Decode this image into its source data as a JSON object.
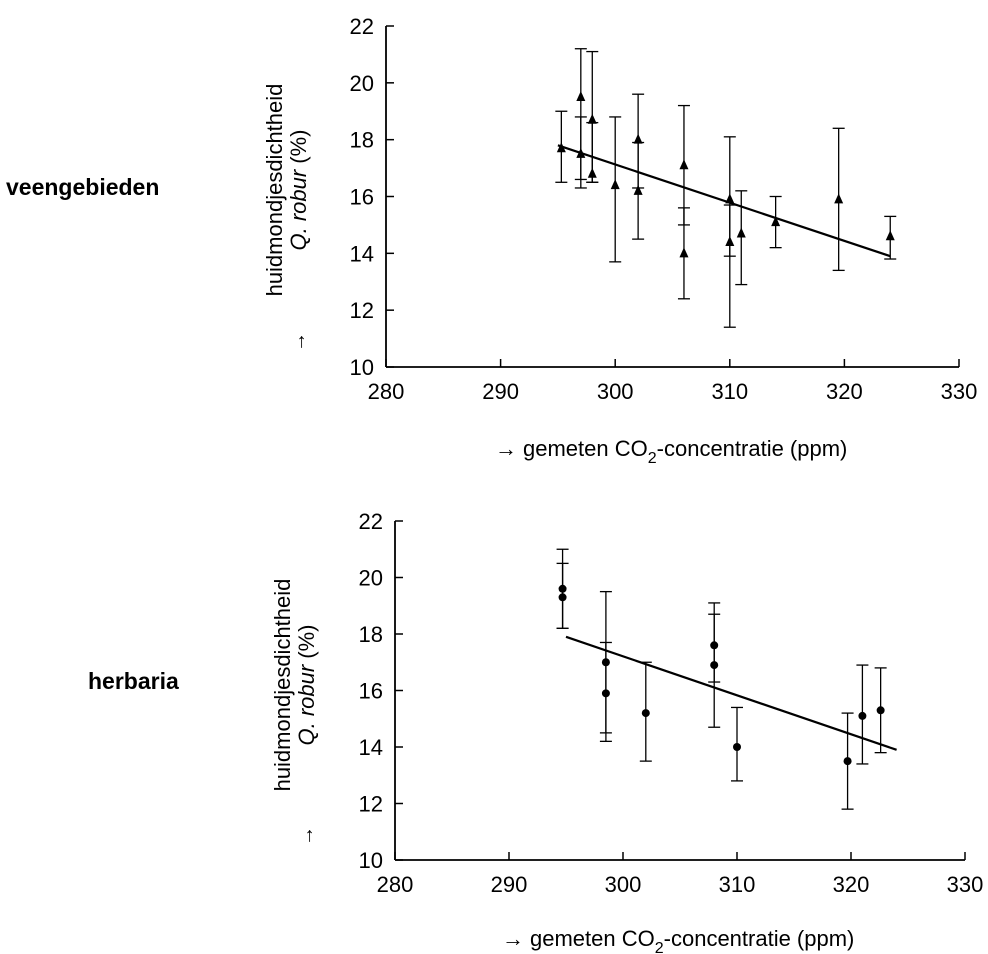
{
  "panels": {
    "top": {
      "side_label": "veengebieden"
    },
    "bottom": {
      "side_label": "herbaria"
    }
  },
  "chart_data": [
    {
      "type": "scatter",
      "name": "veengebieden",
      "marker": "triangle",
      "xlabel": {
        "arrow": "→",
        "before_sub": "gemeten CO",
        "sub": "2",
        "after_sub": "-concentratie (ppm)"
      },
      "ylabel": {
        "arrow": "→",
        "line1": "huidmondjesdichtheid",
        "line2_italic": "Q. robur",
        "line2_rest": " (%)"
      },
      "xlim": [
        280,
        330
      ],
      "ylim": [
        10,
        22
      ],
      "xticks": [
        "280",
        "290",
        "300",
        "310",
        "320",
        "330"
      ],
      "yticks": [
        "10",
        "12",
        "14",
        "16",
        "18",
        "20",
        "22"
      ],
      "points": [
        {
          "x": 297,
          "y": 19.5,
          "lo": 16.6,
          "hi": 21.2
        },
        {
          "x": 297,
          "y": 17.5,
          "lo": 16.3,
          "hi": 18.8
        },
        {
          "x": 298,
          "y": 18.7,
          "lo": 16.5,
          "hi": 21.1
        },
        {
          "x": 298,
          "y": 16.8,
          "lo": 16.5,
          "hi": 18.6
        },
        {
          "x": 295.3,
          "y": 17.7,
          "lo": 16.5,
          "hi": 19.0
        },
        {
          "x": 300,
          "y": 16.4,
          "lo": 13.7,
          "hi": 18.8
        },
        {
          "x": 302,
          "y": 18.0,
          "lo": 16.3,
          "hi": 19.6
        },
        {
          "x": 302,
          "y": 16.2,
          "lo": 14.5,
          "hi": 17.9
        },
        {
          "x": 306,
          "y": 17.1,
          "lo": 15.0,
          "hi": 19.2
        },
        {
          "x": 306,
          "y": 14.0,
          "lo": 12.4,
          "hi": 15.6
        },
        {
          "x": 310,
          "y": 15.9,
          "lo": 13.9,
          "hi": 18.1
        },
        {
          "x": 310,
          "y": 14.4,
          "lo": 11.4,
          "hi": 15.7
        },
        {
          "x": 311,
          "y": 14.7,
          "lo": 12.9,
          "hi": 16.2
        },
        {
          "x": 314,
          "y": 15.1,
          "lo": 14.2,
          "hi": 16.0
        },
        {
          "x": 319.5,
          "y": 15.9,
          "lo": 13.4,
          "hi": 18.4
        },
        {
          "x": 324,
          "y": 14.6,
          "lo": 13.8,
          "hi": 15.3
        }
      ],
      "trend": {
        "x1": 295,
        "y1": 17.8,
        "x2": 324,
        "y2": 13.9
      }
    },
    {
      "type": "scatter",
      "name": "herbaria",
      "marker": "circle",
      "xlabel": {
        "arrow": "→",
        "before_sub": "gemeten CO",
        "sub": "2",
        "after_sub": "-concentratie (ppm)"
      },
      "ylabel": {
        "arrow": "→",
        "line1": "huidmondjesdichtheid",
        "line2_italic": "Q. robur",
        "line2_rest": " (%)"
      },
      "xlim": [
        280,
        330
      ],
      "ylim": [
        10,
        22
      ],
      "xticks": [
        "280",
        "290",
        "300",
        "310",
        "320",
        "330"
      ],
      "yticks": [
        "10",
        "12",
        "14",
        "16",
        "18",
        "20",
        "22"
      ],
      "points": [
        {
          "x": 294.7,
          "y": 19.6,
          "lo": 18.2,
          "hi": 21.0
        },
        {
          "x": 294.7,
          "y": 19.3,
          "lo": 18.2,
          "hi": 20.5
        },
        {
          "x": 298.5,
          "y": 17.0,
          "lo": 14.5,
          "hi": 19.5
        },
        {
          "x": 298.5,
          "y": 15.9,
          "lo": 14.2,
          "hi": 17.7
        },
        {
          "x": 302,
          "y": 15.2,
          "lo": 13.5,
          "hi": 17.0
        },
        {
          "x": 308,
          "y": 17.6,
          "lo": 16.3,
          "hi": 19.1
        },
        {
          "x": 308,
          "y": 16.9,
          "lo": 14.7,
          "hi": 18.7
        },
        {
          "x": 310,
          "y": 14.0,
          "lo": 12.8,
          "hi": 15.4
        },
        {
          "x": 319.7,
          "y": 13.5,
          "lo": 11.8,
          "hi": 15.2
        },
        {
          "x": 321,
          "y": 15.1,
          "lo": 13.4,
          "hi": 16.9
        },
        {
          "x": 322.6,
          "y": 15.3,
          "lo": 13.8,
          "hi": 16.8
        }
      ],
      "trend": {
        "x1": 295,
        "y1": 17.9,
        "x2": 324,
        "y2": 13.9
      }
    }
  ]
}
